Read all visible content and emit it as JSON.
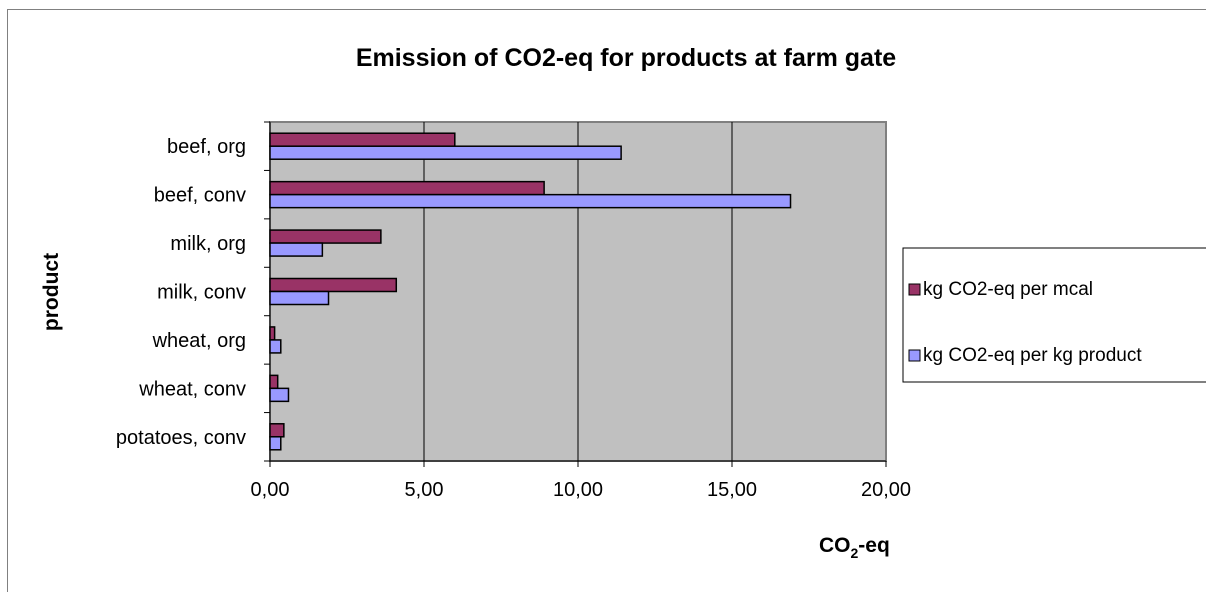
{
  "chart_data": {
    "type": "bar",
    "orientation": "horizontal",
    "title": "Emission of CO2-eq for products at farm gate",
    "ylabel": "product",
    "xlabel_main": "CO",
    "xlabel_sub": "2",
    "xlabel_tail": "-eq",
    "categories": [
      "beef, org",
      "beef, conv",
      "milk, org",
      "milk, conv",
      "wheat, org",
      "wheat, conv",
      "potatoes, conv"
    ],
    "series": [
      {
        "name": "kg CO2-eq per mcal",
        "color": "#993366",
        "values": [
          6.0,
          8.9,
          3.6,
          4.1,
          0.15,
          0.25,
          0.45
        ]
      },
      {
        "name": "kg CO2-eq per kg product",
        "color": "#9999ff",
        "values": [
          11.4,
          16.9,
          1.7,
          1.9,
          0.35,
          0.6,
          0.35
        ]
      }
    ],
    "xlim": [
      0,
      20
    ],
    "xticks": [
      0,
      5,
      10,
      15,
      20
    ],
    "xtick_labels": [
      "0,00",
      "5,00",
      "10,00",
      "15,00",
      "20,00"
    ],
    "grid": true,
    "plot_background": "#c0c0c0",
    "legend_position": "right"
  }
}
